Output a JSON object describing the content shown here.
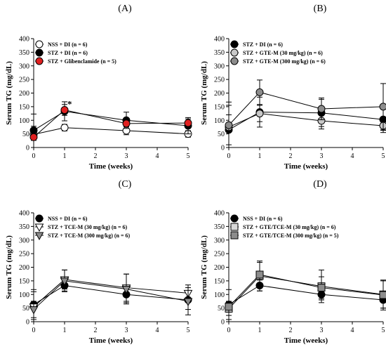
{
  "chart_data": [
    {
      "type": "line",
      "panel_label": "(A)",
      "xlabel": "Time (weeks)",
      "ylabel": "Serum TG (mg/dL)",
      "xlim": [
        0,
        5
      ],
      "ylim": [
        0,
        400
      ],
      "xticks": [
        0,
        1,
        2,
        3,
        4,
        5
      ],
      "yticks": [
        0,
        50,
        100,
        150,
        200,
        250,
        300,
        350,
        400
      ],
      "legend_position": "top-left",
      "annotations": [
        {
          "text": "*",
          "x": 1,
          "y": 148
        }
      ],
      "series": [
        {
          "name": "NSS + DI (n = 6)",
          "marker": "circle",
          "fill": "#ffffff",
          "x": [
            0,
            1,
            3,
            5
          ],
          "y": [
            48,
            73,
            62,
            50
          ],
          "err": [
            75,
            12,
            15,
            12
          ]
        },
        {
          "name": "STZ + DI (n = 6)",
          "marker": "circle",
          "fill": "#000000",
          "x": [
            0,
            1,
            3,
            5
          ],
          "y": [
            63,
            133,
            100,
            80
          ],
          "err": [
            15,
            35,
            30,
            30
          ]
        },
        {
          "name": "STZ + Glibenclamide (n = 5)",
          "marker": "circle",
          "fill": "#e02020",
          "x": [
            0,
            1,
            3,
            5
          ],
          "y": [
            38,
            138,
            88,
            90
          ],
          "err": [
            12,
            20,
            12,
            15
          ]
        }
      ]
    },
    {
      "type": "line",
      "panel_label": "(B)",
      "xlabel": "Time (weeks)",
      "ylabel": "Serum TG (mg/dL)",
      "xlim": [
        0,
        5
      ],
      "ylim": [
        0,
        400
      ],
      "xticks": [
        0,
        1,
        2,
        3,
        4,
        5
      ],
      "yticks": [
        0,
        50,
        100,
        150,
        200,
        250,
        300,
        350,
        400
      ],
      "legend_position": "top-left",
      "series": [
        {
          "name": "STZ + DI (n = 6)",
          "marker": "circle",
          "fill": "#000000",
          "x": [
            0,
            1,
            3,
            5
          ],
          "y": [
            65,
            130,
            127,
            103
          ],
          "err": [
            55,
            55,
            50,
            40
          ]
        },
        {
          "name": "STZ + GTE-M (30 mg/kg) (n = 6)",
          "marker": "circle",
          "fill": "#c8c8c8",
          "x": [
            0,
            1,
            3,
            5
          ],
          "y": [
            75,
            125,
            98,
            80
          ],
          "err": [
            80,
            30,
            30,
            25
          ]
        },
        {
          "name": "STZ + GTE-M (300 mg/kg) (n = 6)",
          "marker": "circle",
          "fill": "#8c8c8c",
          "x": [
            0,
            1,
            3,
            5
          ],
          "y": [
            82,
            203,
            142,
            150
          ],
          "err": [
            85,
            45,
            40,
            85
          ]
        }
      ]
    },
    {
      "type": "line",
      "panel_label": "(C)",
      "xlabel": "Time (weeks)",
      "ylabel": "Serum TG (mg/dL)",
      "xlim": [
        0,
        5
      ],
      "ylim": [
        0,
        400
      ],
      "xticks": [
        0,
        1,
        2,
        3,
        4,
        5
      ],
      "yticks": [
        0,
        50,
        100,
        150,
        200,
        250,
        300,
        350,
        400
      ],
      "legend_position": "top-left",
      "series": [
        {
          "name": "NSS + DI (n = 6)",
          "marker": "circle",
          "fill": "#000000",
          "x": [
            0,
            1,
            3,
            5
          ],
          "y": [
            63,
            133,
            100,
            80
          ],
          "err": [
            55,
            20,
            30,
            35
          ]
        },
        {
          "name": "STZ + TCE-M (30 mg/kg) (n = 6)",
          "marker": "triangle",
          "fill": "#ffffff",
          "x": [
            0,
            1,
            3,
            5
          ],
          "y": [
            55,
            155,
            125,
            105
          ],
          "err": [
            55,
            35,
            50,
            30
          ]
        },
        {
          "name": "STZ + TCE-M (300 mg/kg) (n = 6)",
          "marker": "triangle",
          "fill": "#8c8c8c",
          "x": [
            0,
            1,
            3,
            5
          ],
          "y": [
            45,
            150,
            120,
            75
          ],
          "err": [
            30,
            40,
            55,
            50
          ]
        }
      ]
    },
    {
      "type": "line",
      "panel_label": "(D)",
      "xlabel": "Time (weeks)",
      "ylabel": "Serum TG (mg/dL)",
      "xlim": [
        0,
        5
      ],
      "ylim": [
        0,
        400
      ],
      "xticks": [
        0,
        1,
        2,
        3,
        4,
        5
      ],
      "yticks": [
        0,
        50,
        100,
        150,
        200,
        250,
        300,
        350,
        400
      ],
      "legend_position": "top-left",
      "series": [
        {
          "name": "NSS + DI (n = 6)",
          "marker": "circle",
          "fill": "#000000",
          "x": [
            0,
            1,
            3,
            5
          ],
          "y": [
            63,
            133,
            100,
            80
          ],
          "err": [
            55,
            20,
            20,
            30
          ]
        },
        {
          "name": "STZ + GTE/TCE-M (30 mg/kg) (n = 6)",
          "marker": "square",
          "fill": "#d8d8d8",
          "x": [
            0,
            1,
            3,
            5
          ],
          "y": [
            48,
            168,
            130,
            100
          ],
          "err": [
            25,
            55,
            60,
            50
          ]
        },
        {
          "name": "STZ + GTE/TCE-M (300 mg/kg) (n = 5)",
          "marker": "square",
          "fill": "#8c8c8c",
          "x": [
            0,
            1,
            3,
            5
          ],
          "y": [
            55,
            173,
            125,
            98
          ],
          "err": [
            20,
            45,
            40,
            55
          ]
        }
      ]
    }
  ]
}
